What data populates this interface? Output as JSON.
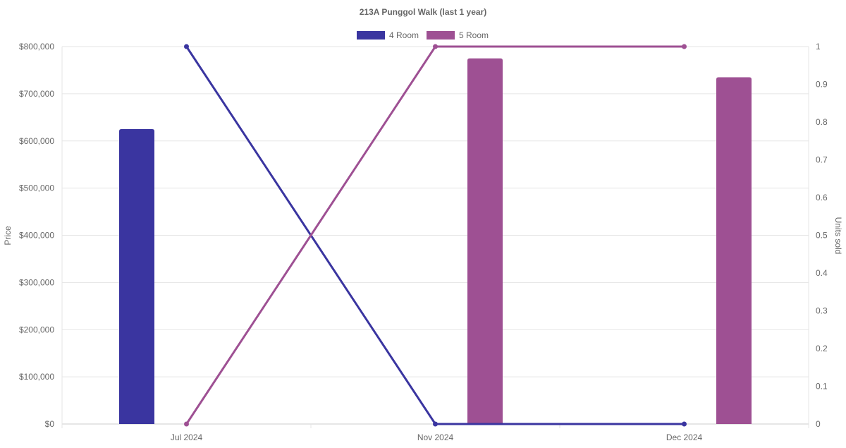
{
  "chart_data": {
    "type": "bar+line",
    "title": "213A Punggol Walk (last 1 year)",
    "categories": [
      "Jul 2024",
      "Nov 2024",
      "Dec 2024"
    ],
    "ylabel": "Price",
    "y2label": "Units sold",
    "ylim": [
      0,
      800000
    ],
    "y2lim": [
      0,
      1
    ],
    "yticks": [
      "$0",
      "$100,000",
      "$200,000",
      "$300,000",
      "$400,000",
      "$500,000",
      "$600,000",
      "$700,000",
      "$800,000"
    ],
    "y2ticks": [
      "0",
      "0.1",
      "0.2",
      "0.3",
      "0.4",
      "0.5",
      "0.6",
      "0.7",
      "0.8",
      "0.9",
      "1"
    ],
    "grid": true,
    "legend": "top",
    "series": [
      {
        "name": "4 Room",
        "color": "#3a35a0",
        "price": [
          625000,
          null,
          null
        ],
        "units_sold": [
          1,
          0,
          0
        ]
      },
      {
        "name": "5 Room",
        "color": "#9e5093",
        "price": [
          null,
          775000,
          735000
        ],
        "units_sold": [
          0,
          1,
          1
        ]
      }
    ]
  }
}
